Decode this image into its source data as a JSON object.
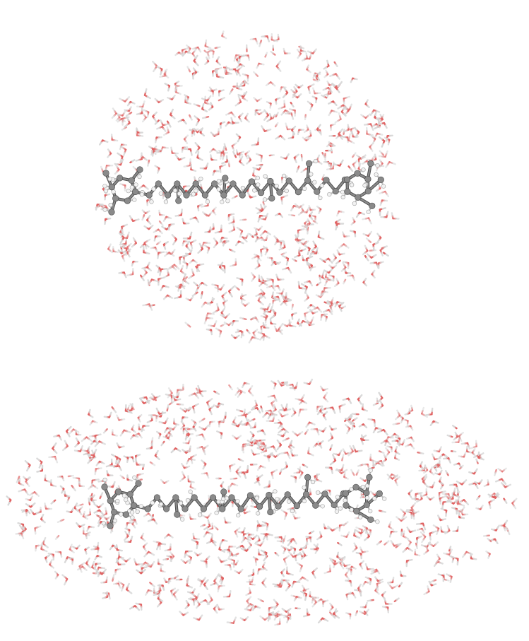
{
  "figure": {
    "background": "#ffffff",
    "panels": [
      {
        "id": "spherical-solvation-shell",
        "shell_shape": "sphere",
        "water_molecules_approx": 700
      },
      {
        "id": "ellipsoidal-solvation-shell",
        "shell_shape": "ellipsoid",
        "water_molecules_approx": 800
      }
    ],
    "colors": {
      "oxygen": "#e06060",
      "hydrogen": "#d8d8d8",
      "carbon": "#8a8a8a",
      "carbon_dark": "#4a4a4a",
      "solute_hydrogen": "#f2f2f2",
      "bond": "#6f6f6f"
    },
    "solute": {
      "type": "carotenoid-like chain",
      "end_groups": [
        "cyclohexene-ring-left",
        "cyclohexene-ring-right"
      ]
    }
  }
}
